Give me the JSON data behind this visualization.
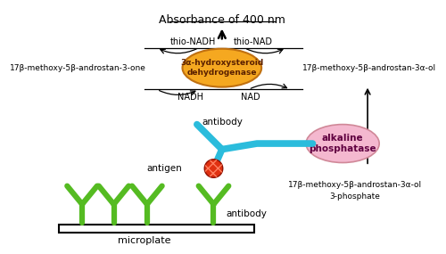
{
  "title": "Absorbance of 400 nm",
  "enzyme_label": "3α-hydroxysteroid\ndehydrogenase",
  "enzyme_color": "#F5A820",
  "alk_phos_label": "alkaline\nphosphatase",
  "alk_phos_color": "#F4B8CF",
  "antibody_color": "#2BBCDC",
  "antigen_color": "#E03010",
  "antibody_green": "#55BB22",
  "left_label": "17β-methoxy-5β-androstan-3-one",
  "right_label": "17β-methoxy-5β-androstan-3α-ol",
  "right_label2": "17β-methoxy-5β-androstan-3α-ol",
  "right_label3": "3-phosphate",
  "thio_nadh": "thio-NADH",
  "thio_nad": "thio-NAD",
  "nadh": "NADH",
  "nad": "NAD",
  "antibody_label": "antibody",
  "antigen_label": "antigen",
  "antibody2_label": "antibody",
  "microplate_label": "microplate",
  "bg_color": "#FFFFFF"
}
